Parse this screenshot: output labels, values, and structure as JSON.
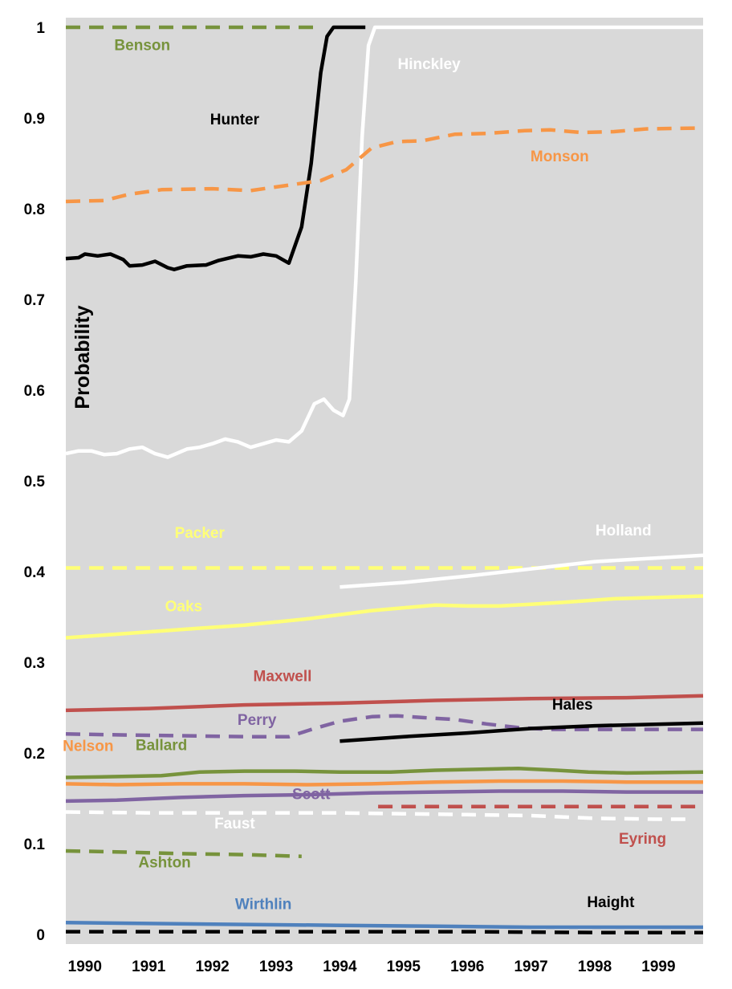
{
  "chart_data": {
    "type": "line",
    "ylabel": "Probability",
    "xlabel": "",
    "title": "",
    "ylim": [
      0,
      1
    ],
    "xlim": [
      1989.7,
      1999.7
    ],
    "grid": false,
    "background": "#d9d9d9",
    "x_ticks": [
      "1990",
      "1991",
      "1992",
      "1993",
      "1994",
      "1995",
      "1996",
      "1997",
      "1998",
      "1999"
    ],
    "y_ticks": [
      "0",
      "0.1",
      "0.2",
      "0.3",
      "0.4",
      "0.5",
      "0.6",
      "0.7",
      "0.8",
      "0.9",
      "1"
    ],
    "series": [
      {
        "name": "Benson",
        "color": "#77933c",
        "dash": true,
        "label_color": "#77933c",
        "points": [
          [
            1989.7,
            1.0
          ],
          [
            1993.6,
            1.0
          ]
        ]
      },
      {
        "name": "Hunter",
        "color": "#000000",
        "dash": false,
        "label_color": "#000000",
        "points": [
          [
            1989.7,
            0.745
          ],
          [
            1989.9,
            0.746
          ],
          [
            1990.0,
            0.75
          ],
          [
            1990.2,
            0.748
          ],
          [
            1990.4,
            0.75
          ],
          [
            1990.6,
            0.744
          ],
          [
            1990.7,
            0.737
          ],
          [
            1990.9,
            0.738
          ],
          [
            1991.1,
            0.742
          ],
          [
            1991.3,
            0.735
          ],
          [
            1991.4,
            0.733
          ],
          [
            1991.6,
            0.737
          ],
          [
            1991.9,
            0.738
          ],
          [
            1992.1,
            0.743
          ],
          [
            1992.4,
            0.748
          ],
          [
            1992.6,
            0.747
          ],
          [
            1992.8,
            0.75
          ],
          [
            1993.0,
            0.748
          ],
          [
            1993.2,
            0.74
          ],
          [
            1993.4,
            0.78
          ],
          [
            1993.55,
            0.85
          ],
          [
            1993.7,
            0.95
          ],
          [
            1993.8,
            0.99
          ],
          [
            1993.9,
            1.0
          ],
          [
            1994.4,
            1.0
          ]
        ]
      },
      {
        "name": "Hinckley",
        "color": "#ffffff",
        "dash": false,
        "label_color": "#ffffff",
        "points": [
          [
            1989.7,
            0.53
          ],
          [
            1989.9,
            0.533
          ],
          [
            1990.1,
            0.533
          ],
          [
            1990.3,
            0.529
          ],
          [
            1990.5,
            0.53
          ],
          [
            1990.7,
            0.535
          ],
          [
            1990.9,
            0.537
          ],
          [
            1991.1,
            0.53
          ],
          [
            1991.3,
            0.526
          ],
          [
            1991.4,
            0.529
          ],
          [
            1991.6,
            0.535
          ],
          [
            1991.8,
            0.537
          ],
          [
            1992.0,
            0.541
          ],
          [
            1992.2,
            0.546
          ],
          [
            1992.4,
            0.543
          ],
          [
            1992.6,
            0.537
          ],
          [
            1992.8,
            0.541
          ],
          [
            1993.0,
            0.545
          ],
          [
            1993.2,
            0.543
          ],
          [
            1993.4,
            0.555
          ],
          [
            1993.6,
            0.585
          ],
          [
            1993.75,
            0.59
          ],
          [
            1993.9,
            0.578
          ],
          [
            1994.05,
            0.572
          ],
          [
            1994.15,
            0.59
          ],
          [
            1994.25,
            0.72
          ],
          [
            1994.35,
            0.88
          ],
          [
            1994.45,
            0.98
          ],
          [
            1994.55,
            1.0
          ],
          [
            1999.7,
            1.0
          ]
        ]
      },
      {
        "name": "Monson",
        "color": "#f79646",
        "dash": true,
        "label_color": "#f79646",
        "points": [
          [
            1989.7,
            0.808
          ],
          [
            1990.3,
            0.809
          ],
          [
            1990.7,
            0.816
          ],
          [
            1991.2,
            0.821
          ],
          [
            1992.0,
            0.822
          ],
          [
            1992.6,
            0.82
          ],
          [
            1993.2,
            0.826
          ],
          [
            1993.7,
            0.831
          ],
          [
            1994.1,
            0.843
          ],
          [
            1994.5,
            0.867
          ],
          [
            1994.9,
            0.874
          ],
          [
            1995.3,
            0.875
          ],
          [
            1995.8,
            0.882
          ],
          [
            1996.3,
            0.883
          ],
          [
            1996.9,
            0.886
          ],
          [
            1997.3,
            0.887
          ],
          [
            1997.8,
            0.884
          ],
          [
            1998.3,
            0.885
          ],
          [
            1998.8,
            0.888
          ],
          [
            1999.7,
            0.889
          ]
        ]
      },
      {
        "name": "Packer",
        "color": "#ffff77",
        "dash": true,
        "label_color": "#ffff77",
        "points": [
          [
            1989.7,
            0.404
          ],
          [
            1999.7,
            0.404
          ]
        ]
      },
      {
        "name": "Holland",
        "color": "#ffffff",
        "dash": false,
        "label_color": "#ffffff",
        "points": [
          [
            1994.0,
            0.383
          ],
          [
            1995.0,
            0.388
          ],
          [
            1996.0,
            0.395
          ],
          [
            1997.0,
            0.403
          ],
          [
            1998.0,
            0.411
          ],
          [
            1999.7,
            0.418
          ]
        ]
      },
      {
        "name": "Oaks",
        "color": "#ffff77",
        "dash": false,
        "label_color": "#ffff77",
        "points": [
          [
            1989.7,
            0.327
          ],
          [
            1990.5,
            0.331
          ],
          [
            1991.5,
            0.336
          ],
          [
            1992.5,
            0.341
          ],
          [
            1993.5,
            0.348
          ],
          [
            1994.5,
            0.357
          ],
          [
            1995.5,
            0.363
          ],
          [
            1996.0,
            0.362
          ],
          [
            1996.5,
            0.362
          ],
          [
            1997.0,
            0.364
          ],
          [
            1997.5,
            0.366
          ],
          [
            1998.3,
            0.37
          ],
          [
            1999.7,
            0.373
          ]
        ]
      },
      {
        "name": "Maxwell",
        "color": "#c0504d",
        "dash": false,
        "label_color": "#c0504d",
        "points": [
          [
            1989.7,
            0.247
          ],
          [
            1991.0,
            0.249
          ],
          [
            1992.5,
            0.253
          ],
          [
            1994.0,
            0.255
          ],
          [
            1995.5,
            0.258
          ],
          [
            1997.0,
            0.26
          ],
          [
            1998.5,
            0.261
          ],
          [
            1999.7,
            0.263
          ]
        ]
      },
      {
        "name": "Perry",
        "color": "#8064a2",
        "dash": true,
        "label_color": "#8064a2",
        "points": [
          [
            1989.7,
            0.221
          ],
          [
            1990.5,
            0.22
          ],
          [
            1991.5,
            0.219
          ],
          [
            1992.5,
            0.218
          ],
          [
            1993.2,
            0.218
          ],
          [
            1993.6,
            0.227
          ],
          [
            1994.0,
            0.235
          ],
          [
            1994.5,
            0.24
          ],
          [
            1994.9,
            0.241
          ],
          [
            1995.3,
            0.239
          ],
          [
            1995.8,
            0.237
          ],
          [
            1996.3,
            0.232
          ],
          [
            1996.8,
            0.228
          ],
          [
            1997.3,
            0.226
          ],
          [
            1998.0,
            0.226
          ],
          [
            1999.7,
            0.226
          ]
        ]
      },
      {
        "name": "Hales",
        "color": "#000000",
        "dash": false,
        "label_color": "#000000",
        "points": [
          [
            1994.0,
            0.213
          ],
          [
            1995.0,
            0.218
          ],
          [
            1996.0,
            0.222
          ],
          [
            1997.0,
            0.227
          ],
          [
            1998.0,
            0.23
          ],
          [
            1999.7,
            0.233
          ]
        ]
      },
      {
        "name": "Ballard",
        "color": "#77933c",
        "dash": false,
        "label_color": "#77933c",
        "points": [
          [
            1989.7,
            0.173
          ],
          [
            1990.5,
            0.174
          ],
          [
            1991.2,
            0.175
          ],
          [
            1991.8,
            0.179
          ],
          [
            1992.5,
            0.18
          ],
          [
            1993.3,
            0.18
          ],
          [
            1994.0,
            0.179
          ],
          [
            1994.8,
            0.179
          ],
          [
            1995.5,
            0.181
          ],
          [
            1996.2,
            0.182
          ],
          [
            1996.8,
            0.183
          ],
          [
            1997.4,
            0.181
          ],
          [
            1997.9,
            0.179
          ],
          [
            1998.5,
            0.178
          ],
          [
            1999.7,
            0.179
          ]
        ]
      },
      {
        "name": "Nelson",
        "color": "#f79646",
        "dash": false,
        "label_color": "#f79646",
        "points": [
          [
            1989.7,
            0.166
          ],
          [
            1990.5,
            0.165
          ],
          [
            1991.5,
            0.166
          ],
          [
            1992.5,
            0.166
          ],
          [
            1993.5,
            0.165
          ],
          [
            1994.5,
            0.166
          ],
          [
            1995.5,
            0.168
          ],
          [
            1996.5,
            0.169
          ],
          [
            1997.5,
            0.169
          ],
          [
            1998.5,
            0.168
          ],
          [
            1999.7,
            0.168
          ]
        ]
      },
      {
        "name": "Scott",
        "color": "#8064a2",
        "dash": false,
        "label_color": "#8064a2",
        "points": [
          [
            1989.7,
            0.147
          ],
          [
            1990.5,
            0.148
          ],
          [
            1991.5,
            0.151
          ],
          [
            1992.5,
            0.153
          ],
          [
            1993.5,
            0.154
          ],
          [
            1994.5,
            0.156
          ],
          [
            1995.5,
            0.157
          ],
          [
            1996.5,
            0.158
          ],
          [
            1997.5,
            0.158
          ],
          [
            1998.5,
            0.157
          ],
          [
            1999.7,
            0.157
          ]
        ]
      },
      {
        "name": "Eyring",
        "color": "#c0504d",
        "dash": true,
        "label_color": "#c0504d",
        "points": [
          [
            1994.6,
            0.141
          ],
          [
            1999.7,
            0.141
          ]
        ]
      },
      {
        "name": "Faust",
        "color": "#ffffff",
        "dash": true,
        "label_color": "#ffffff",
        "points": [
          [
            1989.7,
            0.135
          ],
          [
            1991.0,
            0.134
          ],
          [
            1992.5,
            0.134
          ],
          [
            1994.0,
            0.134
          ],
          [
            1995.0,
            0.133
          ],
          [
            1996.0,
            0.132
          ],
          [
            1997.0,
            0.131
          ],
          [
            1998.0,
            0.128
          ],
          [
            1999.0,
            0.127
          ],
          [
            1999.5,
            0.127
          ]
        ]
      },
      {
        "name": "Ashton",
        "color": "#77933c",
        "dash": true,
        "label_color": "#77933c",
        "points": [
          [
            1989.7,
            0.092
          ],
          [
            1990.5,
            0.091
          ],
          [
            1991.5,
            0.089
          ],
          [
            1992.5,
            0.088
          ],
          [
            1993.4,
            0.086
          ]
        ]
      },
      {
        "name": "Wirthlin",
        "color": "#4f81bd",
        "dash": false,
        "label_color": "#4f81bd",
        "points": [
          [
            1989.7,
            0.013
          ],
          [
            1991.0,
            0.012
          ],
          [
            1992.5,
            0.011
          ],
          [
            1994.0,
            0.01
          ],
          [
            1995.5,
            0.009
          ],
          [
            1997.0,
            0.008
          ],
          [
            1998.5,
            0.008
          ],
          [
            1999.7,
            0.008
          ]
        ]
      },
      {
        "name": "Haight",
        "color": "#000000",
        "dash": true,
        "label_color": "#000000",
        "points": [
          [
            1989.7,
            0.003
          ],
          [
            1992.0,
            0.003
          ],
          [
            1994.0,
            0.003
          ],
          [
            1996.0,
            0.003
          ],
          [
            1998.0,
            0.002
          ],
          [
            1999.7,
            0.002
          ]
        ]
      }
    ],
    "series_labels": [
      {
        "series": "Benson",
        "x": 1990.9,
        "y": 0.975
      },
      {
        "series": "Hunter",
        "x": 1992.35,
        "y": 0.893
      },
      {
        "series": "Hinckley",
        "x": 1995.4,
        "y": 0.954
      },
      {
        "series": "Monson",
        "x": 1997.45,
        "y": 0.852
      },
      {
        "series": "Packer",
        "x": 1991.8,
        "y": 0.437
      },
      {
        "series": "Holland",
        "x": 1998.45,
        "y": 0.44
      },
      {
        "series": "Oaks",
        "x": 1991.55,
        "y": 0.356
      },
      {
        "series": "Maxwell",
        "x": 1993.1,
        "y": 0.279
      },
      {
        "series": "Perry",
        "x": 1992.7,
        "y": 0.231
      },
      {
        "series": "Hales",
        "x": 1997.65,
        "y": 0.248
      },
      {
        "series": "Nelson",
        "x": 1990.05,
        "y": 0.202
      },
      {
        "series": "Ballard",
        "x": 1991.2,
        "y": 0.203
      },
      {
        "series": "Scott",
        "x": 1993.55,
        "y": 0.149
      },
      {
        "series": "Faust",
        "x": 1992.35,
        "y": 0.117
      },
      {
        "series": "Eyring",
        "x": 1998.75,
        "y": 0.1
      },
      {
        "series": "Ashton",
        "x": 1991.25,
        "y": 0.074
      },
      {
        "series": "Wirthlin",
        "x": 1992.8,
        "y": 0.028
      },
      {
        "series": "Haight",
        "x": 1998.25,
        "y": 0.03
      }
    ]
  }
}
